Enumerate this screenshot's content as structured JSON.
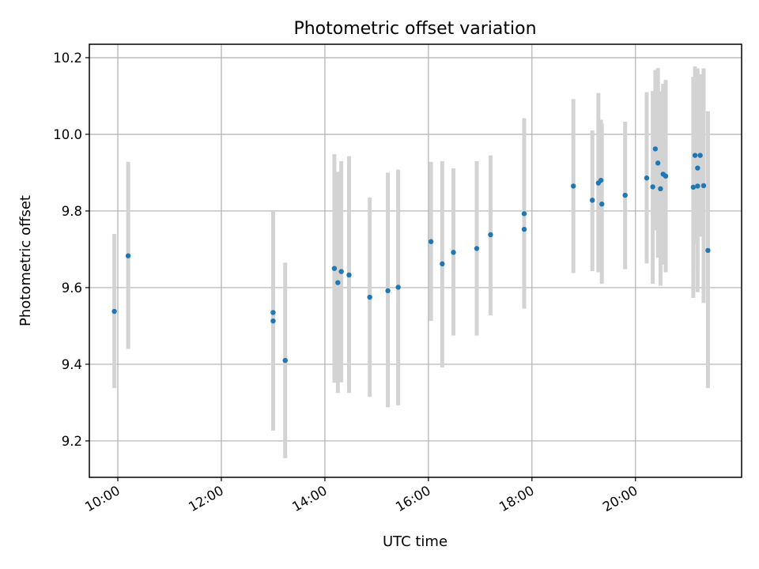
{
  "chart_data": {
    "type": "scatter",
    "title": "Photometric offset variation",
    "xlabel": "UTC time",
    "ylabel": "Photometric offset",
    "x_tick_labels": [
      "10:00",
      "12:00",
      "14:00",
      "16:00",
      "18:00",
      "20:00"
    ],
    "x_tick_values": [
      "10:00",
      "12:00",
      "14:00",
      "16:00",
      "18:00",
      "20:00"
    ],
    "y_tick_labels": [
      "9.2",
      "9.4",
      "9.6",
      "9.8",
      "10.0",
      "10.2"
    ],
    "y_tick_values": [
      9.2,
      9.4,
      9.6,
      9.8,
      10.0,
      10.2
    ],
    "xlim": [
      "09:27",
      "22:03"
    ],
    "ylim": [
      9.105,
      10.235
    ],
    "grid": true,
    "point_color": "#1f77b4",
    "errorbar_color": "#d3d3d3",
    "series": [
      {
        "points": [
          {
            "x": "09:56",
            "y": 9.538,
            "ylow": 9.338,
            "yhigh": 9.74
          },
          {
            "x": "10:12",
            "y": 9.683,
            "ylow": 9.44,
            "yhigh": 9.928
          },
          {
            "x": "13:00",
            "y": 9.535,
            "ylow": 9.227,
            "yhigh": 9.798
          },
          {
            "x": "13:00",
            "y": 9.513,
            "ylow": 9.27,
            "yhigh": 9.758
          },
          {
            "x": "13:14",
            "y": 9.41,
            "ylow": 9.155,
            "yhigh": 9.665
          },
          {
            "x": "14:11",
            "y": 9.65,
            "ylow": 9.352,
            "yhigh": 9.948
          },
          {
            "x": "14:15",
            "y": 9.613,
            "ylow": 9.325,
            "yhigh": 9.902
          },
          {
            "x": "14:19",
            "y": 9.642,
            "ylow": 9.353,
            "yhigh": 9.93
          },
          {
            "x": "14:28",
            "y": 9.633,
            "ylow": 9.325,
            "yhigh": 9.943
          },
          {
            "x": "14:52",
            "y": 9.575,
            "ylow": 9.315,
            "yhigh": 9.835
          },
          {
            "x": "15:13",
            "y": 9.592,
            "ylow": 9.288,
            "yhigh": 9.9
          },
          {
            "x": "15:25",
            "y": 9.601,
            "ylow": 9.293,
            "yhigh": 9.908
          },
          {
            "x": "16:03",
            "y": 9.72,
            "ylow": 9.513,
            "yhigh": 9.928
          },
          {
            "x": "16:16",
            "y": 9.662,
            "ylow": 9.392,
            "yhigh": 9.93
          },
          {
            "x": "16:29",
            "y": 9.692,
            "ylow": 9.475,
            "yhigh": 9.911
          },
          {
            "x": "16:56",
            "y": 9.702,
            "ylow": 9.475,
            "yhigh": 9.93
          },
          {
            "x": "17:12",
            "y": 9.738,
            "ylow": 9.528,
            "yhigh": 9.945
          },
          {
            "x": "17:51",
            "y": 9.793,
            "ylow": 9.545,
            "yhigh": 10.042
          },
          {
            "x": "17:51",
            "y": 9.752,
            "ylow": 9.553,
            "yhigh": 9.95
          },
          {
            "x": "18:48",
            "y": 9.865,
            "ylow": 9.638,
            "yhigh": 10.092
          },
          {
            "x": "19:10",
            "y": 9.828,
            "ylow": 9.643,
            "yhigh": 10.01
          },
          {
            "x": "19:17",
            "y": 9.873,
            "ylow": 9.64,
            "yhigh": 10.108
          },
          {
            "x": "19:20",
            "y": 9.88,
            "ylow": 9.725,
            "yhigh": 10.038
          },
          {
            "x": "19:21",
            "y": 9.818,
            "ylow": 9.61,
            "yhigh": 10.028
          },
          {
            "x": "19:48",
            "y": 9.841,
            "ylow": 9.648,
            "yhigh": 10.033
          },
          {
            "x": "20:13",
            "y": 9.886,
            "ylow": 9.663,
            "yhigh": 10.11
          },
          {
            "x": "20:20",
            "y": 9.863,
            "ylow": 9.61,
            "yhigh": 10.113
          },
          {
            "x": "20:23",
            "y": 9.962,
            "ylow": 9.75,
            "yhigh": 10.168
          },
          {
            "x": "20:26",
            "y": 9.925,
            "ylow": 9.678,
            "yhigh": 10.173
          },
          {
            "x": "20:29",
            "y": 9.858,
            "ylow": 9.605,
            "yhigh": 10.112
          },
          {
            "x": "20:32",
            "y": 9.896,
            "ylow": 9.66,
            "yhigh": 10.132
          },
          {
            "x": "20:35",
            "y": 9.891,
            "ylow": 9.64,
            "yhigh": 10.142
          },
          {
            "x": "21:07",
            "y": 9.862,
            "ylow": 9.573,
            "yhigh": 10.15
          },
          {
            "x": "21:09",
            "y": 9.945,
            "ylow": 9.713,
            "yhigh": 10.177
          },
          {
            "x": "21:12",
            "y": 9.912,
            "ylow": 9.65,
            "yhigh": 10.172
          },
          {
            "x": "21:12",
            "y": 9.865,
            "ylow": 9.588,
            "yhigh": 10.142
          },
          {
            "x": "21:15",
            "y": 9.945,
            "ylow": 9.733,
            "yhigh": 10.157
          },
          {
            "x": "21:19",
            "y": 9.866,
            "ylow": 9.56,
            "yhigh": 10.172
          },
          {
            "x": "21:24",
            "y": 9.697,
            "ylow": 9.338,
            "yhigh": 10.06
          }
        ]
      }
    ]
  }
}
